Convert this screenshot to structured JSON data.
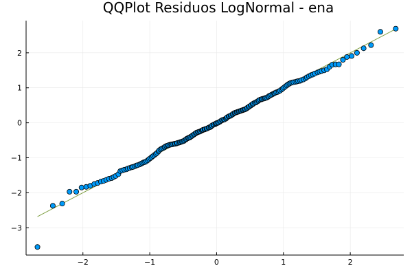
{
  "chart_data": {
    "type": "scatter",
    "title": "QQPlot Residuos LogNormal - ena",
    "xlabel": "",
    "ylabel": "",
    "xlim": [
      -2.85,
      2.8
    ],
    "ylim": [
      -3.78,
      2.92
    ],
    "x_ticks": [
      -2,
      -1,
      0,
      1,
      2
    ],
    "y_ticks": [
      -3,
      -2,
      -1,
      0,
      1,
      2
    ],
    "x_tick_labels": [
      "−2",
      "−1",
      "0",
      "1",
      "2"
    ],
    "y_tick_labels": [
      "−3",
      "−2",
      "−1",
      "0",
      "1",
      "2"
    ],
    "grid": true,
    "legend": false,
    "colors": {
      "points": "#009AF9",
      "point_stroke": "#000000",
      "reference_line": "#7F9F43",
      "grid": "#e8e8e8",
      "axis": "#000000"
    },
    "reference_line": {
      "x": [
        -2.68,
        2.68
      ],
      "y": [
        -2.68,
        2.68
      ]
    },
    "points": [
      [
        -2.68,
        -3.55
      ],
      [
        -2.45,
        -2.37
      ],
      [
        -2.31,
        -2.31
      ],
      [
        -2.2,
        -1.97
      ],
      [
        -2.1,
        -1.97
      ],
      [
        -2.02,
        -1.85
      ],
      [
        -1.95,
        -1.83
      ],
      [
        -1.89,
        -1.8
      ],
      [
        -1.83,
        -1.75
      ],
      [
        -1.78,
        -1.72
      ],
      [
        -1.73,
        -1.68
      ],
      [
        -1.69,
        -1.66
      ],
      [
        -1.65,
        -1.63
      ],
      [
        -1.61,
        -1.6
      ],
      [
        -1.57,
        -1.58
      ],
      [
        -1.54,
        -1.55
      ],
      [
        -1.51,
        -1.52
      ],
      [
        -1.47,
        -1.47
      ],
      [
        -1.44,
        -1.38
      ],
      [
        -1.41,
        -1.36
      ],
      [
        -1.38,
        -1.34
      ],
      [
        -1.35,
        -1.33
      ],
      [
        -1.33,
        -1.31
      ],
      [
        -1.3,
        -1.29
      ],
      [
        -1.27,
        -1.27
      ],
      [
        -1.25,
        -1.26
      ],
      [
        -1.22,
        -1.24
      ],
      [
        -1.2,
        -1.22
      ],
      [
        -1.18,
        -1.21
      ],
      [
        -1.15,
        -1.19
      ],
      [
        -1.13,
        -1.17
      ],
      [
        -1.11,
        -1.15
      ],
      [
        -1.09,
        -1.13
      ],
      [
        -1.07,
        -1.12
      ],
      [
        -1.05,
        -1.1
      ],
      [
        -1.03,
        -1.07
      ],
      [
        -1.01,
        -1.04
      ],
      [
        -0.99,
        -1.01
      ],
      [
        -0.97,
        -0.98
      ],
      [
        -0.95,
        -0.95
      ],
      [
        -0.93,
        -0.92
      ],
      [
        -0.91,
        -0.89
      ],
      [
        -0.89,
        -0.86
      ],
      [
        -0.87,
        -0.82
      ],
      [
        -0.86,
        -0.79
      ],
      [
        -0.84,
        -0.76
      ],
      [
        -0.82,
        -0.74
      ],
      [
        -0.8,
        -0.72
      ],
      [
        -0.78,
        -0.7
      ],
      [
        -0.77,
        -0.68
      ],
      [
        -0.75,
        -0.66
      ],
      [
        -0.73,
        -0.65
      ],
      [
        -0.72,
        -0.64
      ],
      [
        -0.7,
        -0.63
      ],
      [
        -0.68,
        -0.62
      ],
      [
        -0.67,
        -0.62
      ],
      [
        -0.65,
        -0.61
      ],
      [
        -0.63,
        -0.6
      ],
      [
        -0.62,
        -0.6
      ],
      [
        -0.6,
        -0.59
      ],
      [
        -0.59,
        -0.58
      ],
      [
        -0.57,
        -0.57
      ],
      [
        -0.55,
        -0.56
      ],
      [
        -0.54,
        -0.55
      ],
      [
        -0.52,
        -0.54
      ],
      [
        -0.51,
        -0.53
      ],
      [
        -0.49,
        -0.52
      ],
      [
        -0.48,
        -0.5
      ],
      [
        -0.46,
        -0.48
      ],
      [
        -0.45,
        -0.46
      ],
      [
        -0.43,
        -0.44
      ],
      [
        -0.42,
        -0.43
      ],
      [
        -0.4,
        -0.42
      ],
      [
        -0.39,
        -0.4
      ],
      [
        -0.37,
        -0.38
      ],
      [
        -0.36,
        -0.36
      ],
      [
        -0.34,
        -0.34
      ],
      [
        -0.33,
        -0.32
      ],
      [
        -0.31,
        -0.3
      ],
      [
        -0.3,
        -0.28
      ],
      [
        -0.28,
        -0.27
      ],
      [
        -0.27,
        -0.26
      ],
      [
        -0.25,
        -0.25
      ],
      [
        -0.24,
        -0.24
      ],
      [
        -0.22,
        -0.22
      ],
      [
        -0.21,
        -0.21
      ],
      [
        -0.2,
        -0.2
      ],
      [
        -0.18,
        -0.19
      ],
      [
        -0.17,
        -0.18
      ],
      [
        -0.15,
        -0.17
      ],
      [
        -0.14,
        -0.16
      ],
      [
        -0.12,
        -0.14
      ],
      [
        -0.11,
        -0.13
      ],
      [
        -0.09,
        -0.12
      ],
      [
        -0.08,
        -0.1
      ],
      [
        -0.07,
        -0.08
      ],
      [
        -0.05,
        -0.06
      ],
      [
        -0.04,
        -0.05
      ],
      [
        -0.02,
        -0.04
      ],
      [
        -0.01,
        -0.02
      ],
      [
        0.0,
        -0.01
      ],
      [
        0.02,
        0.0
      ],
      [
        0.03,
        0.01
      ],
      [
        0.05,
        0.03
      ],
      [
        0.06,
        0.05
      ],
      [
        0.08,
        0.07
      ],
      [
        0.09,
        0.08
      ],
      [
        0.11,
        0.09
      ],
      [
        0.12,
        0.1
      ],
      [
        0.14,
        0.12
      ],
      [
        0.15,
        0.14
      ],
      [
        0.16,
        0.16
      ],
      [
        0.18,
        0.18
      ],
      [
        0.19,
        0.19
      ],
      [
        0.21,
        0.2
      ],
      [
        0.22,
        0.22
      ],
      [
        0.24,
        0.24
      ],
      [
        0.25,
        0.26
      ],
      [
        0.27,
        0.28
      ],
      [
        0.28,
        0.29
      ],
      [
        0.3,
        0.3
      ],
      [
        0.31,
        0.31
      ],
      [
        0.33,
        0.32
      ],
      [
        0.34,
        0.33
      ],
      [
        0.36,
        0.34
      ],
      [
        0.37,
        0.35
      ],
      [
        0.39,
        0.36
      ],
      [
        0.4,
        0.37
      ],
      [
        0.42,
        0.38
      ],
      [
        0.43,
        0.39
      ],
      [
        0.45,
        0.41
      ],
      [
        0.46,
        0.43
      ],
      [
        0.48,
        0.45
      ],
      [
        0.49,
        0.47
      ],
      [
        0.51,
        0.49
      ],
      [
        0.52,
        0.51
      ],
      [
        0.54,
        0.53
      ],
      [
        0.55,
        0.55
      ],
      [
        0.57,
        0.57
      ],
      [
        0.59,
        0.58
      ],
      [
        0.6,
        0.6
      ],
      [
        0.62,
        0.62
      ],
      [
        0.63,
        0.64
      ],
      [
        0.65,
        0.66
      ],
      [
        0.67,
        0.67
      ],
      [
        0.68,
        0.68
      ],
      [
        0.7,
        0.69
      ],
      [
        0.72,
        0.7
      ],
      [
        0.73,
        0.71
      ],
      [
        0.75,
        0.72
      ],
      [
        0.77,
        0.74
      ],
      [
        0.78,
        0.76
      ],
      [
        0.8,
        0.78
      ],
      [
        0.82,
        0.8
      ],
      [
        0.84,
        0.82
      ],
      [
        0.86,
        0.84
      ],
      [
        0.87,
        0.85
      ],
      [
        0.89,
        0.87
      ],
      [
        0.91,
        0.88
      ],
      [
        0.93,
        0.9
      ],
      [
        0.95,
        0.92
      ],
      [
        0.97,
        0.95
      ],
      [
        0.99,
        0.98
      ],
      [
        1.01,
        1.01
      ],
      [
        1.03,
        1.04
      ],
      [
        1.05,
        1.07
      ],
      [
        1.07,
        1.1
      ],
      [
        1.09,
        1.12
      ],
      [
        1.11,
        1.14
      ],
      [
        1.13,
        1.15
      ],
      [
        1.15,
        1.16
      ],
      [
        1.18,
        1.17
      ],
      [
        1.2,
        1.18
      ],
      [
        1.22,
        1.19
      ],
      [
        1.25,
        1.2
      ],
      [
        1.27,
        1.22
      ],
      [
        1.3,
        1.24
      ],
      [
        1.33,
        1.27
      ],
      [
        1.35,
        1.3
      ],
      [
        1.38,
        1.33
      ],
      [
        1.41,
        1.36
      ],
      [
        1.44,
        1.38
      ],
      [
        1.47,
        1.41
      ],
      [
        1.51,
        1.44
      ],
      [
        1.54,
        1.46
      ],
      [
        1.57,
        1.48
      ],
      [
        1.61,
        1.5
      ],
      [
        1.65,
        1.53
      ],
      [
        1.69,
        1.6
      ],
      [
        1.73,
        1.66
      ],
      [
        1.78,
        1.67
      ],
      [
        1.83,
        1.67
      ],
      [
        1.89,
        1.8
      ],
      [
        1.95,
        1.88
      ],
      [
        2.02,
        1.91
      ],
      [
        2.1,
        2.0
      ],
      [
        2.2,
        2.13
      ],
      [
        2.31,
        2.22
      ],
      [
        2.45,
        2.6
      ],
      [
        2.68,
        2.69
      ]
    ]
  }
}
